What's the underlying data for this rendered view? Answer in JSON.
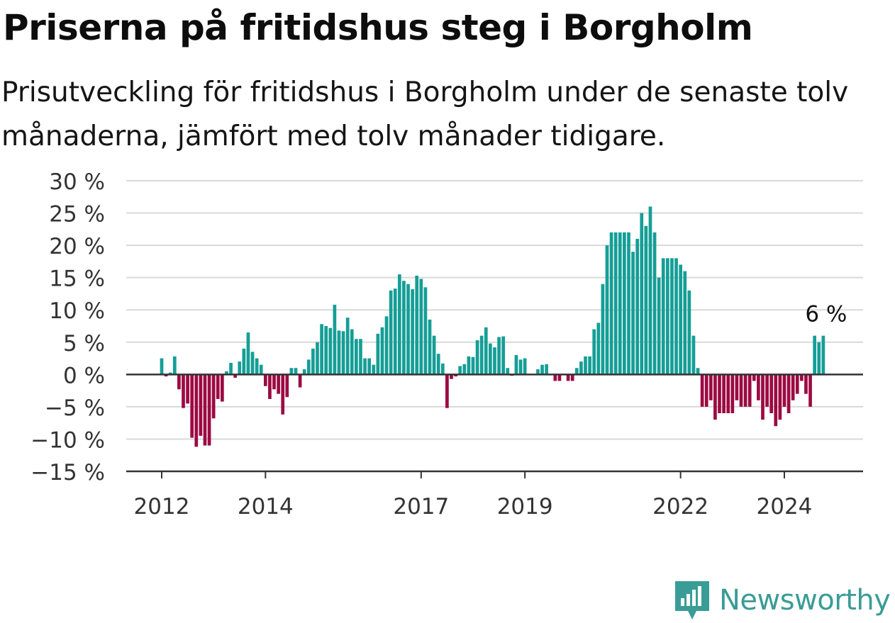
{
  "title": "Priserna på fritidshus steg i Borgholm",
  "subtitle": "Prisutveckling för fritidshus i Borgholm under de senaste tolv månaderna, jämfört med tolv månader tidigare.",
  "brand": {
    "name": "Newsworthy",
    "icon": "newsworthy-logo-icon",
    "color": "#3a9c96"
  },
  "colors": {
    "positive": "#159e96",
    "negative": "#9c0a43",
    "grid": "#d9d9d9",
    "zero_line": "#333333"
  },
  "chart_data": {
    "type": "bar",
    "ylim": [
      -15,
      30
    ],
    "y_ticks": [
      30,
      25,
      20,
      15,
      10,
      5,
      0,
      -5,
      -10,
      -15
    ],
    "y_tick_labels": [
      "30 %",
      "25 %",
      "20 %",
      "15 %",
      "10 %",
      "5 %",
      "0 %",
      "−5 %",
      "−10 %",
      "−15 %"
    ],
    "x_ticks": [
      "2012",
      "2014",
      "2017",
      "2019",
      "2022",
      "2024"
    ],
    "x_tick_years": [
      2012,
      2014,
      2017,
      2019,
      2022,
      2024
    ],
    "start": "2012-01",
    "frequency": "monthly",
    "values": [
      2.5,
      -0.3,
      0.3,
      2.8,
      -2.3,
      -5.2,
      -4.5,
      -9.8,
      -11.2,
      -9.5,
      -11.0,
      -11.0,
      -6.8,
      -3.8,
      -4.2,
      0.5,
      1.8,
      -0.5,
      2.0,
      4.0,
      6.5,
      3.5,
      2.5,
      1.5,
      -1.8,
      -3.8,
      -2.3,
      -3.0,
      -6.2,
      -3.5,
      1.0,
      1.0,
      -2.0,
      0.8,
      2.3,
      4.0,
      5.0,
      7.8,
      7.5,
      7.2,
      10.8,
      6.8,
      6.7,
      8.8,
      7.0,
      5.5,
      5.5,
      2.5,
      2.5,
      1.5,
      6.3,
      7.3,
      9.0,
      13.0,
      13.3,
      15.5,
      14.5,
      14.0,
      13.2,
      15.3,
      14.8,
      13.5,
      8.5,
      6.0,
      3.2,
      1.7,
      -5.2,
      -0.7,
      -0.3,
      1.3,
      1.6,
      2.8,
      2.7,
      5.3,
      6.0,
      7.3,
      4.8,
      4.2,
      5.8,
      5.9,
      1.0,
      -0.2,
      3.0,
      2.3,
      2.5,
      0,
      0,
      0.8,
      1.5,
      1.6,
      0,
      -1.0,
      -1.0,
      0,
      -1.0,
      -1.0,
      1.0,
      2.0,
      2.8,
      2.8,
      7.0,
      8.0,
      14.0,
      20.0,
      22.0,
      22.0,
      22.0,
      22.0,
      22.0,
      19.0,
      21.0,
      25.0,
      23.0,
      26.0,
      22.0,
      15.0,
      18.0,
      18.0,
      18.0,
      18.0,
      17.0,
      16.0,
      13.0,
      6.0,
      1.0,
      -5.0,
      -5.0,
      -4.0,
      -7.0,
      -6.0,
      -6.0,
      -6.0,
      -6.0,
      -4.0,
      -5.0,
      -5.0,
      -5.0,
      -1.0,
      -4.0,
      -7.0,
      -5.0,
      -6.0,
      -8.0,
      -7.0,
      -5.0,
      -6.0,
      -4.0,
      -3.0,
      -1.0,
      -3.0,
      -5.0,
      6.0,
      5.0,
      6.0
    ],
    "annotation": {
      "text": "6 %",
      "series_index": 153
    }
  }
}
